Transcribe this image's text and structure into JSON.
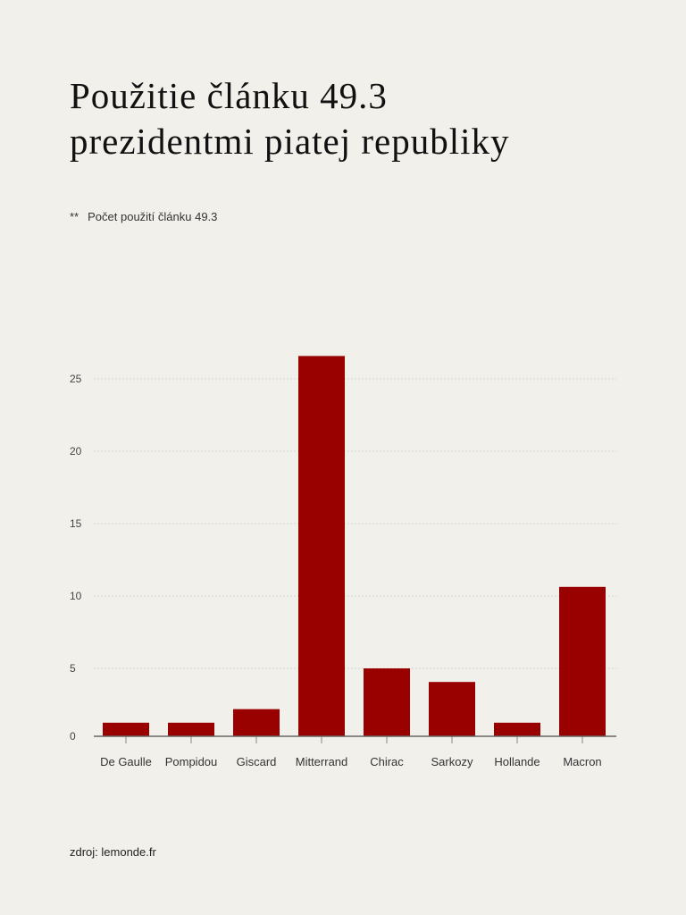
{
  "chart_data": {
    "type": "bar",
    "title": "Použitie článku 49.3 prezidentmi piatej republiky",
    "legend": {
      "marker": "**",
      "label": "Počet použití článku 49.3"
    },
    "categories": [
      "De Gaulle",
      "Pompidou",
      "Giscard",
      "Mitterrand",
      "Chirac",
      "Sarkozy",
      "Hollande",
      "Macron"
    ],
    "values": [
      1,
      1,
      2,
      28,
      5,
      4,
      1,
      11
    ],
    "yticks": [
      0,
      5,
      10,
      15,
      20,
      25
    ],
    "ylim": [
      0,
      28
    ],
    "grid": true,
    "bar_color": "#990000",
    "xlabel": "",
    "ylabel": ""
  },
  "title_lines": [
    "Použitie článku 49.3",
    "prezidentmi piatej republiky"
  ],
  "source": "zdroj: lemonde.fr"
}
